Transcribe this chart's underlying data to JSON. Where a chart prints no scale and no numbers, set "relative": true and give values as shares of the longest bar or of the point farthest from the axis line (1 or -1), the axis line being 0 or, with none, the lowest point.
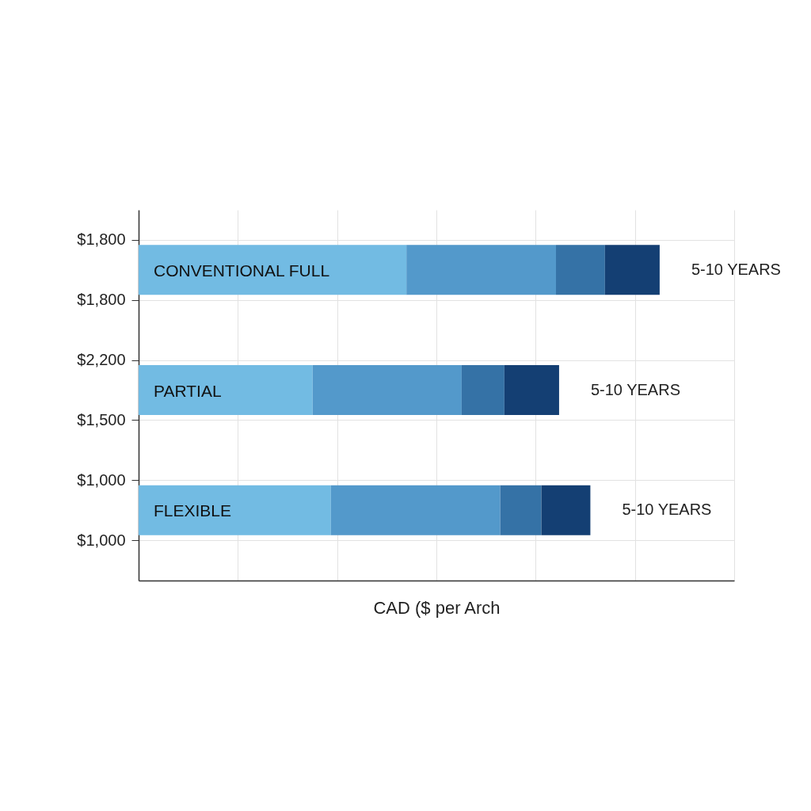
{
  "chart_data": {
    "type": "bar",
    "orientation": "horizontal",
    "stacked": true,
    "relative": true,
    "categories": [
      "CONVENTIONAL FULL",
      "PARTIAL",
      "FLEXIBLE"
    ],
    "series": [
      {
        "color": "#72bbe3",
        "values": [
          0.514,
          0.334,
          0.369
        ]
      },
      {
        "color": "#5399cb",
        "values": [
          0.287,
          0.286,
          0.325
        ]
      },
      {
        "color": "#3572a6",
        "values": [
          0.094,
          0.082,
          0.079
        ]
      },
      {
        "color": "#143f73",
        "values": [
          0.105,
          0.105,
          0.094
        ]
      }
    ],
    "totals": [
      "5-10 YEARS",
      "5-10 YEARS",
      "5-10 YEARS"
    ],
    "xlabel": "CAD ($ per Arch",
    "annotations": [
      "$1,800",
      "$1,800",
      "$2,200",
      "$1,500",
      "$1,000",
      "$1,000"
    ],
    "grid": true
  }
}
